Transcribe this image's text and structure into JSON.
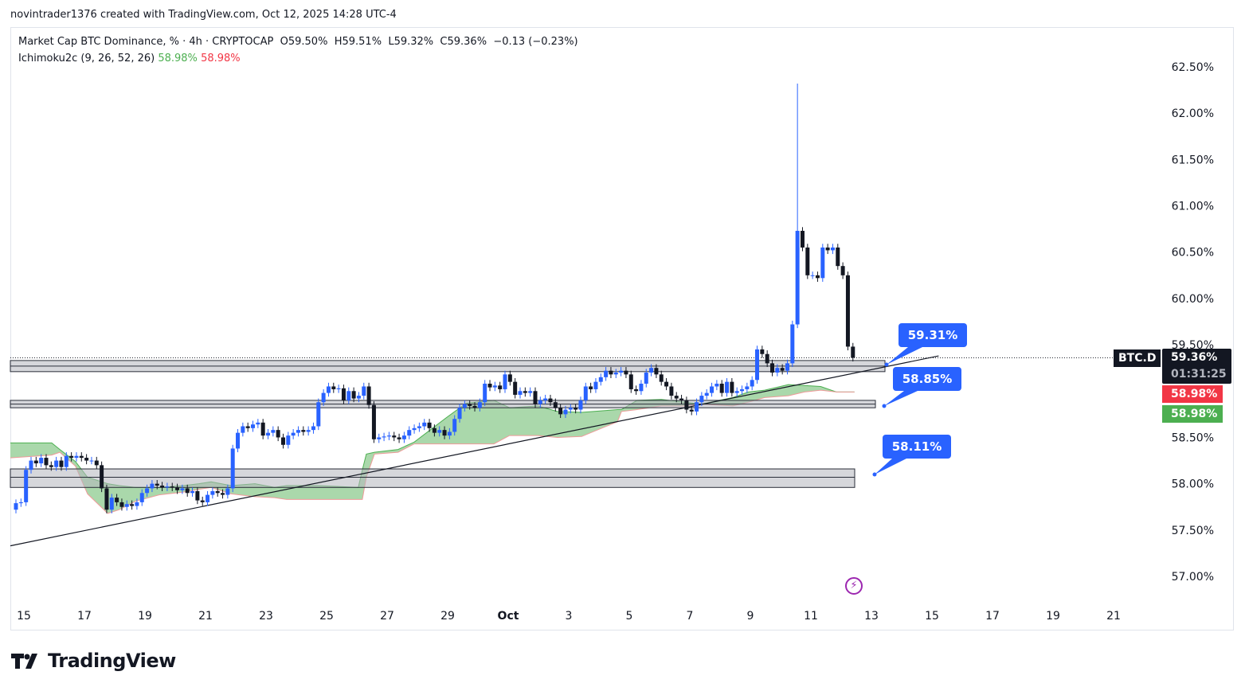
{
  "credit": "novintrader1376 created with TradingView.com, Oct 12, 2025 14:28 UTC-4",
  "legend": {
    "title": "Market Cap BTC Dominance, % · 4h · CRYPTOCAP",
    "open": "O59.50%",
    "high": "H59.51%",
    "low": "L59.32%",
    "close": "C59.36%",
    "change": "−0.13 (−0.23%)",
    "indicator": "Ichimoku2c (9, 26, 52, 26)",
    "indicator_val1": "58.98%",
    "indicator_val2": "58.98%"
  },
  "price_labels": {
    "symbol": "BTC.D",
    "last": "59.36%",
    "countdown": "01:31:25",
    "span_b": "58.98%",
    "span_a": "58.98%"
  },
  "callouts": [
    "59.31%",
    "58.85%",
    "58.11%"
  ],
  "logo_text": "TradingView",
  "colors": {
    "up": "#2962ff",
    "down": "#131722",
    "cloud": "#a5d6a7",
    "span_a": "#4caf50",
    "span_b": "#ef9a9a",
    "callout": "#2962ff",
    "accent_red": "#f23645",
    "accent_green": "#4caf50"
  },
  "chart_data": {
    "type": "candlestick",
    "symbol": "BTC.D",
    "interval": "4h",
    "ylim": [
      56.8,
      62.7
    ],
    "y_ticks": [
      "62.50%",
      "62.00%",
      "61.50%",
      "61.00%",
      "60.50%",
      "60.00%",
      "59.50%",
      "59.00%",
      "58.50%",
      "58.00%",
      "57.50%",
      "57.00%"
    ],
    "y_tick_values": [
      62.5,
      62.0,
      61.5,
      61.0,
      60.5,
      60.0,
      59.5,
      59.0,
      58.5,
      58.0,
      57.5,
      57.0
    ],
    "x_ticks": [
      "15",
      "17",
      "19",
      "21",
      "23",
      "25",
      "27",
      "29",
      "Oct",
      "3",
      "5",
      "7",
      "9",
      "11",
      "13",
      "15",
      "17",
      "19",
      "21"
    ],
    "first_open": 57.72,
    "closes": [
      57.79,
      57.8,
      58.15,
      58.25,
      58.22,
      58.28,
      58.2,
      58.18,
      58.25,
      58.18,
      58.3,
      58.28,
      58.3,
      58.28,
      58.25,
      58.25,
      58.2,
      57.95,
      57.72,
      57.85,
      57.8,
      57.75,
      57.78,
      57.76,
      57.8,
      57.9,
      57.95,
      58.0,
      57.98,
      57.96,
      57.97,
      57.96,
      57.93,
      57.95,
      57.9,
      57.92,
      57.82,
      57.8,
      57.88,
      57.92,
      57.9,
      57.88,
      57.95,
      58.38,
      58.55,
      58.62,
      58.6,
      58.64,
      58.66,
      58.52,
      58.55,
      58.58,
      58.5,
      58.42,
      58.52,
      58.55,
      58.58,
      58.56,
      58.58,
      58.62,
      58.88,
      58.98,
      59.05,
      59.02,
      59.03,
      58.9,
      59.0,
      58.92,
      58.95,
      59.05,
      58.85,
      58.48,
      58.5,
      58.51,
      58.52,
      58.5,
      58.48,
      58.52,
      58.58,
      58.6,
      58.62,
      58.66,
      58.6,
      58.55,
      58.58,
      58.52,
      58.56,
      58.7,
      58.82,
      58.86,
      58.84,
      58.82,
      58.88,
      59.08,
      59.04,
      59.06,
      59.02,
      59.18,
      59.1,
      58.96,
      59.0,
      58.98,
      59.0,
      58.86,
      58.9,
      58.92,
      58.88,
      58.82,
      58.75,
      58.8,
      58.82,
      58.8,
      58.9,
      59.05,
      59.02,
      59.1,
      59.15,
      59.22,
      59.18,
      59.2,
      59.22,
      59.18,
      59.02,
      59.0,
      59.08,
      59.2,
      59.25,
      59.18,
      59.1,
      59.05,
      58.95,
      58.92,
      58.9,
      58.8,
      58.78,
      58.88,
      58.95,
      58.98,
      59.05,
      59.08,
      58.98,
      59.1,
      58.98,
      59.0,
      59.02,
      59.05,
      59.12,
      59.45,
      59.4,
      59.3,
      59.2,
      59.25,
      59.22,
      59.3,
      59.72,
      60.73,
      60.55,
      60.25,
      60.25,
      60.22,
      60.55,
      60.52,
      60.55,
      60.35,
      60.25,
      59.48,
      59.36
    ],
    "spike": {
      "bar": 155,
      "high": 62.32
    },
    "ichimoku_cloud": [
      [
        -1.1,
        58.44,
        58.28
      ],
      [
        7.1,
        58.44,
        58.31
      ],
      [
        8.7,
        58.37,
        58.34
      ],
      [
        11.8,
        58.24,
        58.19
      ],
      [
        14.2,
        58.07,
        57.89
      ],
      [
        18.2,
        58.0,
        57.68
      ],
      [
        20.5,
        57.98,
        57.72
      ],
      [
        23.7,
        57.96,
        57.81
      ],
      [
        28.4,
        57.96,
        57.88
      ],
      [
        33.2,
        57.98,
        57.91
      ],
      [
        36.3,
        58.0,
        57.94
      ],
      [
        38.7,
        58.02,
        57.96
      ],
      [
        42.7,
        57.98,
        57.89
      ],
      [
        47.4,
        58.0,
        57.86
      ],
      [
        51.3,
        57.96,
        57.85
      ],
      [
        53.7,
        57.98,
        57.83
      ],
      [
        60,
        57.98,
        57.83
      ],
      [
        67.9,
        57.96,
        57.83
      ],
      [
        68.7,
        58.15,
        57.83
      ],
      [
        69.5,
        58.32,
        58.07
      ],
      [
        71.1,
        58.34,
        58.32
      ],
      [
        75.8,
        58.37,
        58.34
      ],
      [
        79,
        58.45,
        58.43
      ],
      [
        85.3,
        58.71,
        58.43
      ],
      [
        89.3,
        58.87,
        58.43
      ],
      [
        94.8,
        58.9,
        58.43
      ],
      [
        97.9,
        58.82,
        58.52
      ],
      [
        103.5,
        58.84,
        58.52
      ],
      [
        107.4,
        58.78,
        58.5
      ],
      [
        112.2,
        58.77,
        58.51
      ],
      [
        119.3,
        58.8,
        58.67
      ],
      [
        120.1,
        58.8,
        58.78
      ],
      [
        123.2,
        58.9,
        58.8
      ],
      [
        128,
        58.91,
        58.84
      ],
      [
        132.7,
        58.88,
        58.84
      ],
      [
        135.9,
        58.86,
        58.86
      ],
      [
        142.2,
        58.93,
        58.84
      ],
      [
        145.3,
        58.99,
        58.88
      ],
      [
        148.5,
        59.01,
        58.93
      ],
      [
        153.2,
        59.07,
        58.95
      ],
      [
        156.4,
        59.06,
        58.99
      ],
      [
        159.6,
        59.05,
        59.01
      ],
      [
        162.7,
        58.99,
        58.99
      ],
      [
        166.3,
        58.99,
        58.99
      ]
    ],
    "zones": [
      [
        59.33,
        59.27,
        59.21
      ],
      [
        58.9,
        58.86,
        58.82
      ],
      [
        58.16,
        58.07,
        57.96
      ]
    ],
    "trendline": [
      [
        -1.1,
        57.33
      ],
      [
        183,
        59.38
      ]
    ],
    "last_price": 59.36
  }
}
